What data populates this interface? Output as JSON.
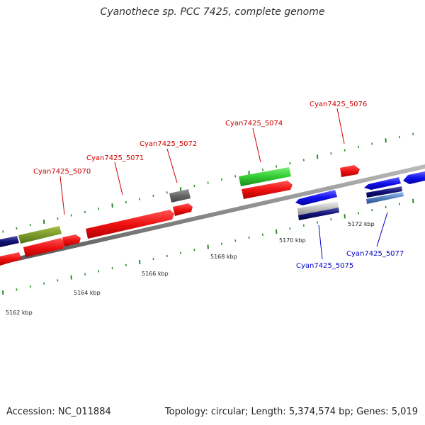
{
  "header": {
    "title": "Cyanothece sp. PCC 7425, complete genome"
  },
  "footer": {
    "accession": "Accession: NC_011884",
    "summary": "Topology: circular; Length: 5,374,574 bp; Genes: 5,019"
  },
  "colors": {
    "cds_red": "#ee1111",
    "rna_green": "#33cc33",
    "olive": "#7a9a2a",
    "grey": "#666666",
    "blue": "#1111ee",
    "navy": "#111177",
    "steel": "#4f7fbf",
    "tick_green": "#2a8a2a",
    "backbone": "#888888",
    "label_red": "#cc0000",
    "label_blue": "#0000cc"
  },
  "ruler": {
    "labels": [
      "5162 kbp",
      "5164 kbp",
      "5166 kbp",
      "5168 kbp",
      "5170 kbp",
      "5172 kbp"
    ]
  },
  "genes_top": [
    {
      "name": "Cyan7425_5070"
    },
    {
      "name": "Cyan7425_5071"
    },
    {
      "name": "Cyan7425_5072"
    },
    {
      "name": "Cyan7425_5074"
    },
    {
      "name": "Cyan7425_5076"
    }
  ],
  "genes_bottom": [
    {
      "name": "Cyan7425_5075"
    },
    {
      "name": "Cyan7425_5077"
    }
  ]
}
